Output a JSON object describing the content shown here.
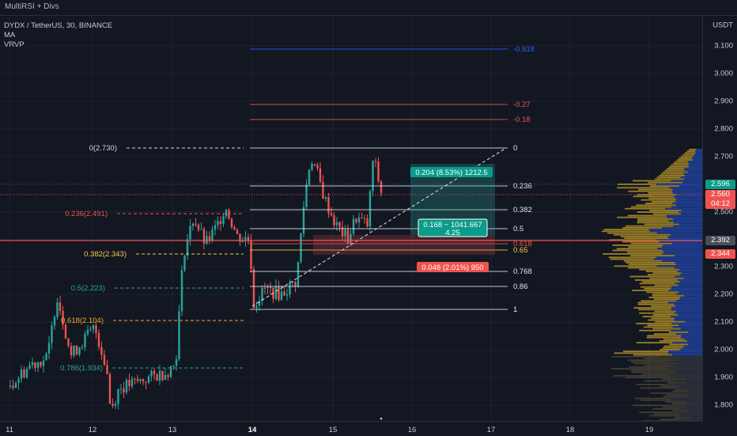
{
  "indicator_bar": "MultiRSI + Divs",
  "legend": {
    "symbol": "DYDX / TetherUS, 30, BINANCE",
    "ma": "MA",
    "vrvp": "VRVP"
  },
  "price_scale": {
    "currency": "USDT",
    "labels": [
      "3.100",
      "3.000",
      "2.900",
      "2.800",
      "2.700",
      "2.600",
      "2.500",
      "2.400",
      "2.300",
      "2.200",
      "2.100",
      "2.000",
      "1.900",
      "1.800"
    ]
  },
  "badges": {
    "last_price": "2.596",
    "current_price": "2.560",
    "countdown": "04:12",
    "crosshair_price": "2.392",
    "level_price": "2.344"
  },
  "colors": {
    "up": "#26a69a",
    "down": "#ef5350",
    "blue": "#2962ff",
    "gold": "#c9a227"
  },
  "time_axis": {
    "labels": [
      "11",
      "12",
      "13",
      "14",
      "15",
      "16",
      "17",
      "18",
      "19"
    ],
    "highlighted": "14"
  },
  "fib_left": {
    "levels": [
      {
        "label": "0(2.730)",
        "color": "#d1d4dc"
      },
      {
        "label": "0.236(2.491)",
        "color": "#ef5350"
      },
      {
        "label": "0.382(2.343)",
        "color": "#f7c948"
      },
      {
        "label": "0.5(2.223)",
        "color": "#26a69a"
      },
      {
        "label": "0.618(2.104)",
        "color": "#ffa726"
      },
      {
        "label": "0.786(1.934)",
        "color": "#26a69a"
      }
    ]
  },
  "fib_right": {
    "levels": [
      {
        "label": "-0.618",
        "color": "#2962ff"
      },
      {
        "label": "-0.27",
        "color": "#ef5350"
      },
      {
        "label": "-0.18",
        "color": "#ef5350"
      },
      {
        "label": "0",
        "color": "#ffffff"
      },
      {
        "label": "0.236",
        "color": "#ffffff"
      },
      {
        "label": "0.382",
        "color": "#ffffff"
      },
      {
        "label": "0.5",
        "color": "#ffffff"
      },
      {
        "label": "0.618",
        "color": "#ef5350"
      },
      {
        "label": "0.65",
        "color": "#f7c948"
      },
      {
        "label": "0.768",
        "color": "#ffffff"
      },
      {
        "label": "0.86",
        "color": "#ffffff"
      },
      {
        "label": "1",
        "color": "#ffffff"
      }
    ]
  },
  "position": {
    "target_text": "0.204 (8.53%) 1212.5",
    "entry_text_1": "0.168 − 1041.667",
    "entry_text_2": "4.25",
    "stop_text": "0.048 (2.01%) 950"
  }
}
